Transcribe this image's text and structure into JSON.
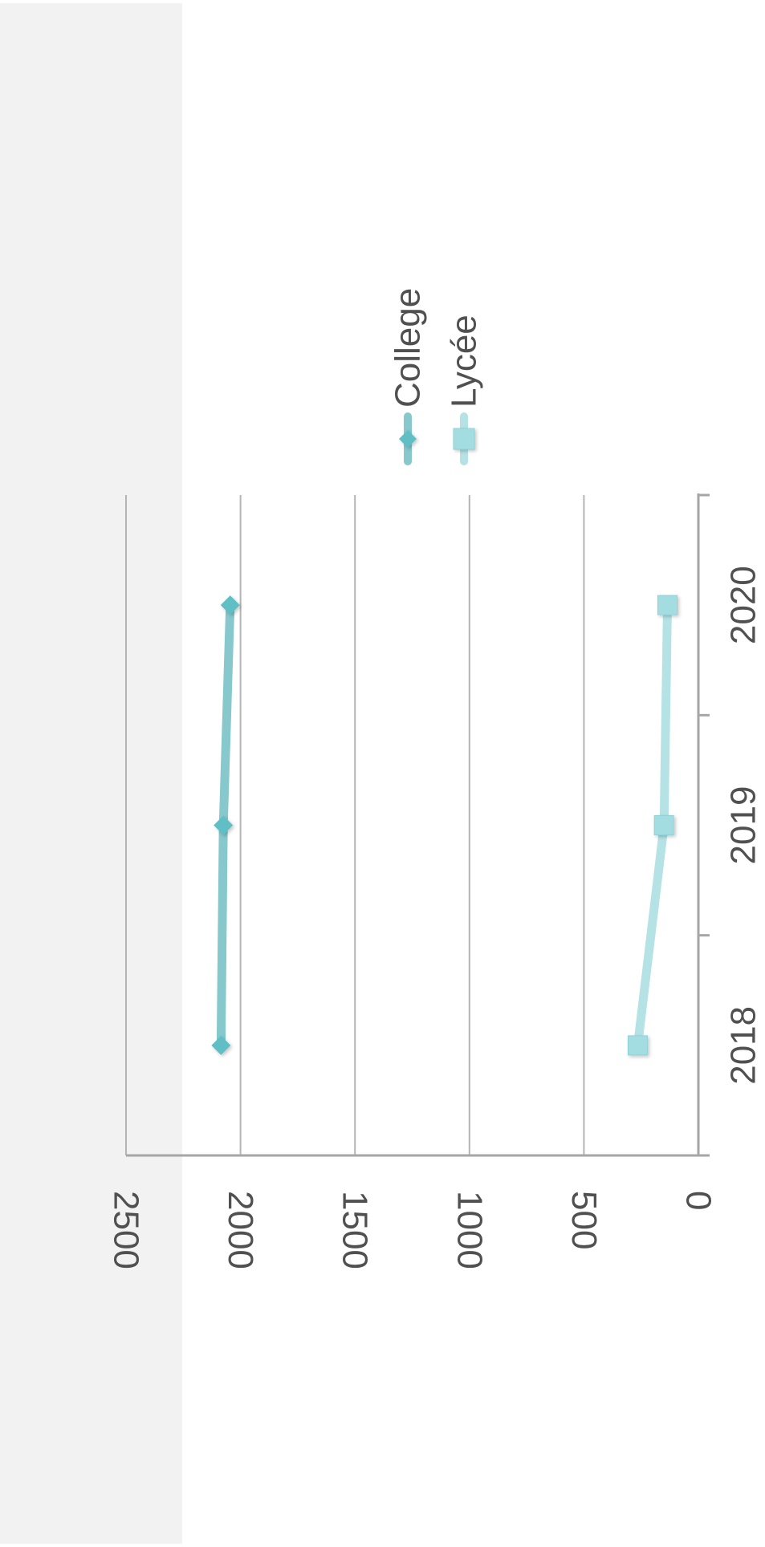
{
  "chart_data": {
    "type": "line",
    "orientation": "rotated-90-clockwise",
    "categories": [
      "2018",
      "2019",
      "2020"
    ],
    "series": [
      {
        "name": "College",
        "values": [
          2085,
          2075,
          2045
        ],
        "color": "#86c8cc",
        "marker": "diamond",
        "marker_color": "#5fbfc5"
      },
      {
        "name": "Lycée",
        "values": [
          265,
          150,
          135
        ],
        "color": "#b5e2e5",
        "marker": "square",
        "marker_color": "#a3dde2"
      }
    ],
    "ylim": [
      0,
      2500
    ],
    "y_ticks": [
      "0",
      "500",
      "1000",
      "1500",
      "2000",
      "2500"
    ],
    "title": "",
    "xlabel": "",
    "ylabel": "",
    "grid": true,
    "legend_position": "right",
    "background_band_color": "#f2f2f2"
  }
}
